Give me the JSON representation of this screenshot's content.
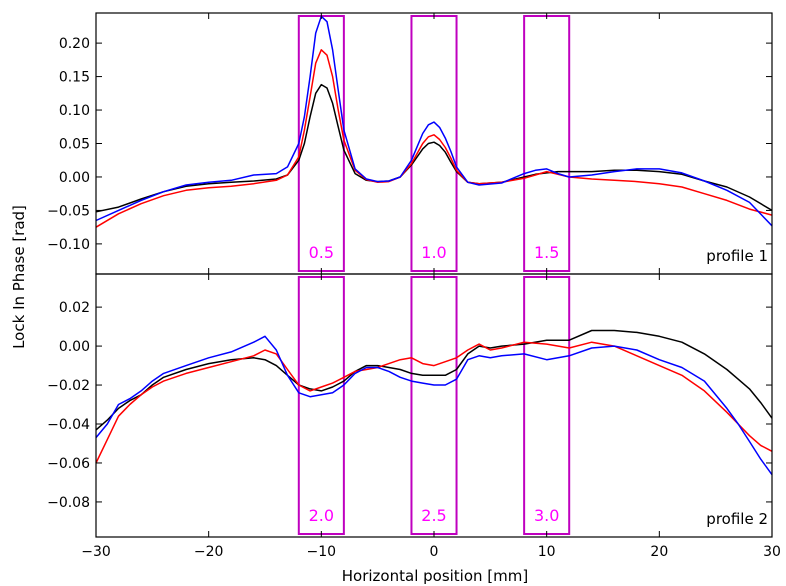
{
  "chart_data": {
    "type": "line",
    "xlabel": "Horizontal position [mm]",
    "ylabel": "Lock In Phase [rad]",
    "xlim": [
      -30,
      30
    ],
    "x_ticks": [
      -30,
      -20,
      -10,
      0,
      10,
      20,
      30
    ],
    "x_tick_labels": [
      "−30",
      "−20",
      "−10",
      "0",
      "10",
      "20",
      "30"
    ],
    "grid": false,
    "colors": {
      "black": "#000000",
      "red": "#ff0000",
      "blue": "#0000ff",
      "box": "#bf00bf",
      "box_text": "#ff00ff"
    },
    "panels": [
      {
        "label": "profile 1",
        "ylim": [
          -0.145,
          0.245
        ],
        "y_ticks": [
          -0.1,
          -0.05,
          0.0,
          0.05,
          0.1,
          0.15,
          0.2
        ],
        "y_tick_labels": [
          "−0.10",
          "−0.05",
          "0.00",
          "0.05",
          "0.10",
          "0.15",
          "0.20"
        ],
        "boxes": [
          {
            "x0": -12,
            "x1": -8,
            "label": "0.5"
          },
          {
            "x0": -2,
            "x1": 2,
            "label": "1.0"
          },
          {
            "x0": 8,
            "x1": 12,
            "label": "1.5"
          }
        ],
        "x": [
          -30,
          -28,
          -26,
          -24,
          -22,
          -20,
          -18,
          -16,
          -14,
          -13,
          -12,
          -11.5,
          -11,
          -10.5,
          -10,
          -9.5,
          -9,
          -8.5,
          -8,
          -7,
          -6,
          -5,
          -4,
          -3,
          -2,
          -1.5,
          -1,
          -0.5,
          0,
          0.5,
          1,
          1.5,
          2,
          3,
          4,
          6,
          8,
          9,
          10,
          11,
          12,
          14,
          16,
          18,
          20,
          22,
          24,
          26,
          28,
          30
        ],
        "series": [
          {
            "color": "black",
            "values": [
              -0.052,
              -0.045,
              -0.033,
              -0.022,
              -0.014,
              -0.01,
              -0.008,
              -0.006,
              -0.003,
              0.003,
              0.025,
              0.05,
              0.09,
              0.125,
              0.138,
              0.133,
              0.11,
              0.075,
              0.04,
              0.005,
              -0.005,
              -0.007,
              -0.006,
              0.0,
              0.018,
              0.03,
              0.042,
              0.05,
              0.052,
              0.047,
              0.037,
              0.022,
              0.008,
              -0.008,
              -0.01,
              -0.008,
              0.0,
              0.004,
              0.006,
              0.008,
              0.008,
              0.008,
              0.01,
              0.01,
              0.008,
              0.004,
              -0.006,
              -0.015,
              -0.03,
              -0.05
            ]
          },
          {
            "color": "red",
            "values": [
              -0.075,
              -0.055,
              -0.04,
              -0.028,
              -0.02,
              -0.016,
              -0.014,
              -0.01,
              -0.005,
              0.003,
              0.03,
              0.07,
              0.12,
              0.17,
              0.19,
              0.182,
              0.15,
              0.1,
              0.055,
              0.01,
              -0.004,
              -0.008,
              -0.007,
              0.0,
              0.02,
              0.035,
              0.05,
              0.06,
              0.063,
              0.056,
              0.044,
              0.028,
              0.01,
              -0.008,
              -0.01,
              -0.008,
              -0.002,
              0.003,
              0.008,
              0.004,
              0.0,
              -0.003,
              -0.005,
              -0.007,
              -0.01,
              -0.015,
              -0.025,
              -0.035,
              -0.048,
              -0.057
            ]
          },
          {
            "color": "blue",
            "values": [
              -0.065,
              -0.05,
              -0.035,
              -0.022,
              -0.012,
              -0.008,
              -0.005,
              0.003,
              0.005,
              0.015,
              0.05,
              0.09,
              0.15,
              0.215,
              0.24,
              0.232,
              0.19,
              0.13,
              0.07,
              0.012,
              -0.003,
              -0.007,
              -0.006,
              0.0,
              0.025,
              0.045,
              0.065,
              0.078,
              0.082,
              0.074,
              0.058,
              0.038,
              0.015,
              -0.008,
              -0.012,
              -0.009,
              0.005,
              0.01,
              0.012,
              0.005,
              0.0,
              0.003,
              0.008,
              0.012,
              0.012,
              0.006,
              -0.006,
              -0.02,
              -0.038,
              -0.073
            ]
          }
        ]
      },
      {
        "label": "profile 2",
        "ylim": [
          -0.098,
          0.037
        ],
        "y_ticks": [
          -0.08,
          -0.06,
          -0.04,
          -0.02,
          0.0,
          0.02
        ],
        "y_tick_labels": [
          "−0.08",
          "−0.06",
          "−0.04",
          "−0.02",
          "0.00",
          "0.02"
        ],
        "boxes": [
          {
            "x0": -12,
            "x1": -8,
            "label": "2.0"
          },
          {
            "x0": -2,
            "x1": 2,
            "label": "2.5"
          },
          {
            "x0": 8,
            "x1": 12,
            "label": "3.0"
          }
        ],
        "x": [
          -30,
          -29,
          -28,
          -27,
          -26,
          -25,
          -24,
          -22,
          -20,
          -18,
          -16,
          -15,
          -14,
          -13,
          -12,
          -11,
          -10,
          -9,
          -8,
          -7,
          -6,
          -5,
          -4,
          -3,
          -2,
          -1,
          0,
          1,
          2,
          3,
          4,
          5,
          6,
          8,
          10,
          12,
          14,
          16,
          18,
          20,
          22,
          24,
          26,
          27,
          28,
          29,
          30
        ],
        "series": [
          {
            "color": "black",
            "values": [
              -0.043,
              -0.038,
              -0.032,
              -0.028,
              -0.025,
              -0.02,
              -0.016,
              -0.012,
              -0.009,
              -0.007,
              -0.006,
              -0.007,
              -0.01,
              -0.015,
              -0.02,
              -0.022,
              -0.023,
              -0.021,
              -0.018,
              -0.013,
              -0.01,
              -0.01,
              -0.011,
              -0.012,
              -0.014,
              -0.015,
              -0.015,
              -0.015,
              -0.012,
              -0.004,
              0.0,
              -0.001,
              0.0,
              0.001,
              0.003,
              0.003,
              0.008,
              0.008,
              0.007,
              0.005,
              0.002,
              -0.004,
              -0.012,
              -0.017,
              -0.022,
              -0.029,
              -0.037
            ]
          },
          {
            "color": "red",
            "values": [
              -0.06,
              -0.048,
              -0.036,
              -0.03,
              -0.025,
              -0.021,
              -0.018,
              -0.014,
              -0.011,
              -0.008,
              -0.005,
              -0.002,
              -0.004,
              -0.012,
              -0.02,
              -0.023,
              -0.021,
              -0.019,
              -0.016,
              -0.013,
              -0.012,
              -0.011,
              -0.009,
              -0.007,
              -0.006,
              -0.009,
              -0.01,
              -0.008,
              -0.006,
              -0.002,
              0.001,
              -0.002,
              -0.001,
              0.002,
              0.001,
              -0.001,
              0.002,
              0.0,
              -0.005,
              -0.01,
              -0.015,
              -0.023,
              -0.034,
              -0.04,
              -0.046,
              -0.051,
              -0.054
            ]
          },
          {
            "color": "blue",
            "values": [
              -0.047,
              -0.04,
              -0.03,
              -0.027,
              -0.023,
              -0.018,
              -0.014,
              -0.01,
              -0.006,
              -0.003,
              0.002,
              0.005,
              -0.002,
              -0.015,
              -0.024,
              -0.026,
              -0.025,
              -0.024,
              -0.02,
              -0.014,
              -0.011,
              -0.011,
              -0.013,
              -0.016,
              -0.018,
              -0.019,
              -0.02,
              -0.02,
              -0.017,
              -0.007,
              -0.005,
              -0.006,
              -0.005,
              -0.004,
              -0.007,
              -0.005,
              -0.001,
              0.0,
              -0.002,
              -0.007,
              -0.011,
              -0.018,
              -0.032,
              -0.04,
              -0.049,
              -0.058,
              -0.066
            ]
          }
        ]
      }
    ]
  }
}
